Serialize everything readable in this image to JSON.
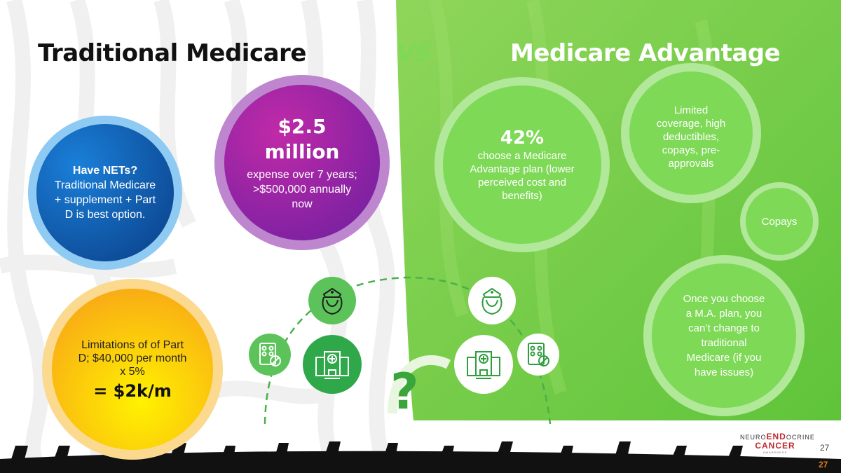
{
  "titles": {
    "left": "Traditional Medicare",
    "vs": "VS",
    "right": "Medicare Advantage"
  },
  "left_circles": {
    "nets": {
      "heading": "Have NETs?",
      "body": "Traditional Medicare + supplement + Part D is best option."
    },
    "cost": {
      "big": "$2.5 million",
      "body": "expense over 7 years; >$500,000 annually now"
    },
    "partd": {
      "body": "Limitations of of Part D; $40,000 per month x 5%",
      "big": "= $2k/m"
    }
  },
  "right_circles": {
    "pct": {
      "big": "42%",
      "body": "choose a Medicare Advantage plan (lower perceived cost and benefits)"
    },
    "limited": {
      "body": "Limited coverage, high deductibles, copays, pre-approvals"
    },
    "copays": {
      "body": "Copays"
    },
    "once": {
      "body": "Once you choose a M.A. plan, you can’t change to traditional Medicare (if you have issues)"
    }
  },
  "question": "?",
  "logo": {
    "line1_a": "NEURO",
    "line1_b": "END",
    "line1_c": "OCRINE",
    "line2": "CANCER",
    "line3": "AWARENESS"
  },
  "page_number": "27",
  "page_number_footer": "27",
  "colors": {
    "green": "#7ed957",
    "dark_green": "#3aa53a",
    "purple": "#9b2fb0",
    "blue": "#1e6fc4",
    "orange": "#f7a21b"
  },
  "icons": [
    "nurse-icon",
    "pill-pack-icon",
    "hospital-icon"
  ]
}
